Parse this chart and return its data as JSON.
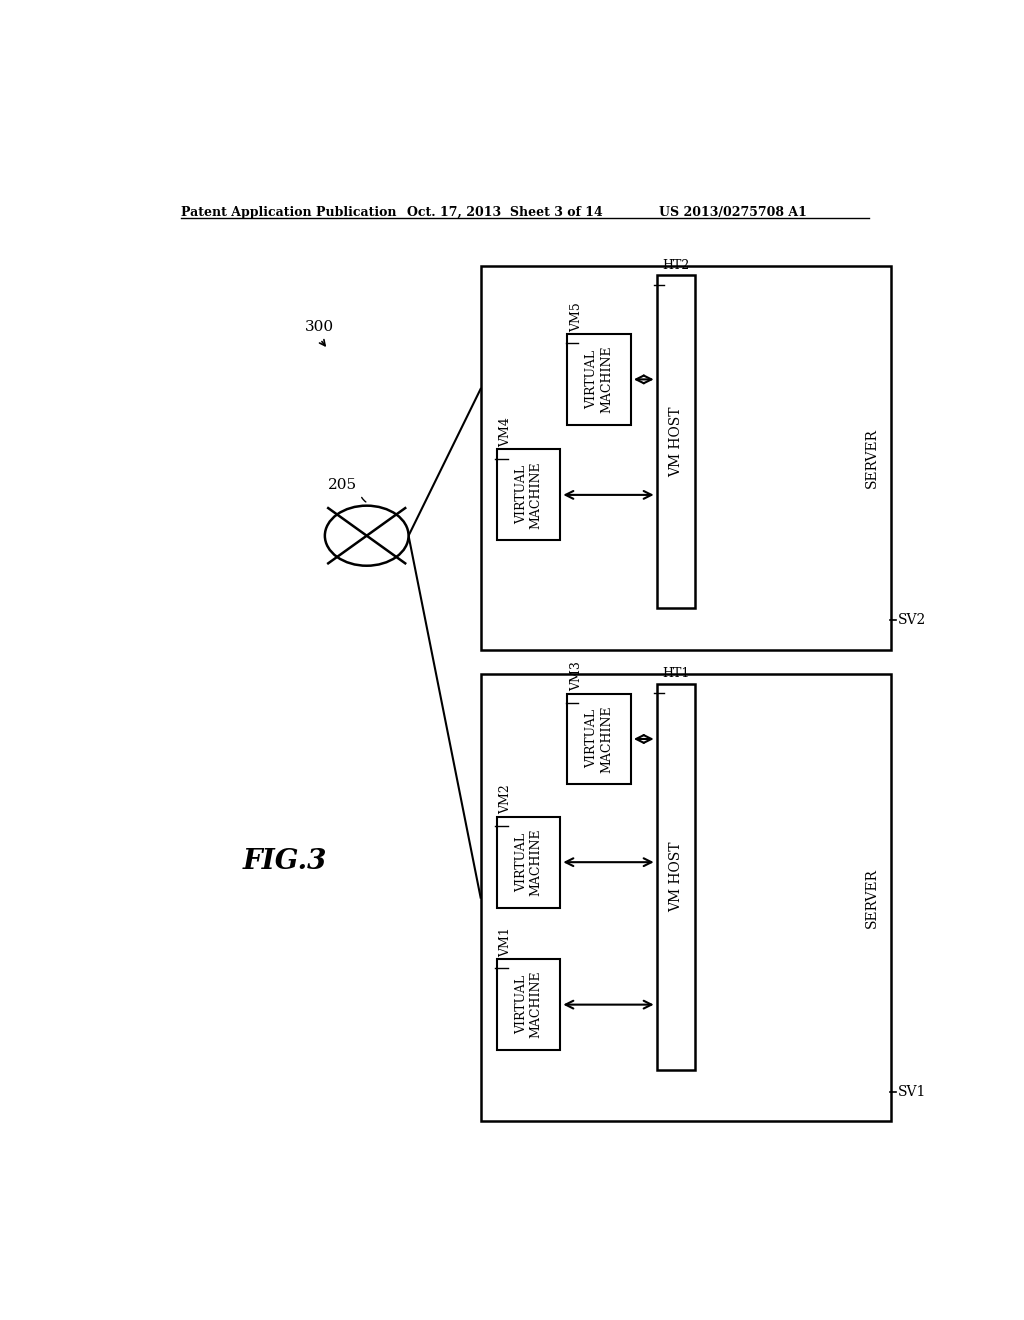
{
  "bg_color": "#ffffff",
  "header_left": "Patent Application Publication",
  "header_mid": "Oct. 17, 2013  Sheet 3 of 14",
  "header_right": "US 2013/0275708 A1",
  "fig_label": "FIG.3",
  "ref_300": "300",
  "ref_205": "205",
  "server1_label": "SERVER",
  "server1_ref": "SV1",
  "server2_label": "SERVER",
  "server2_ref": "SV2",
  "vmhost1_label": "VM HOST",
  "vmhost1_ref": "HT1",
  "vmhost2_label": "VM HOST",
  "vmhost2_ref": "HT2",
  "vm_labels": [
    "VM1",
    "VM2",
    "VM3",
    "VM4",
    "VM5"
  ],
  "vm_box_label": "VIRTUAL\nMACHINE"
}
